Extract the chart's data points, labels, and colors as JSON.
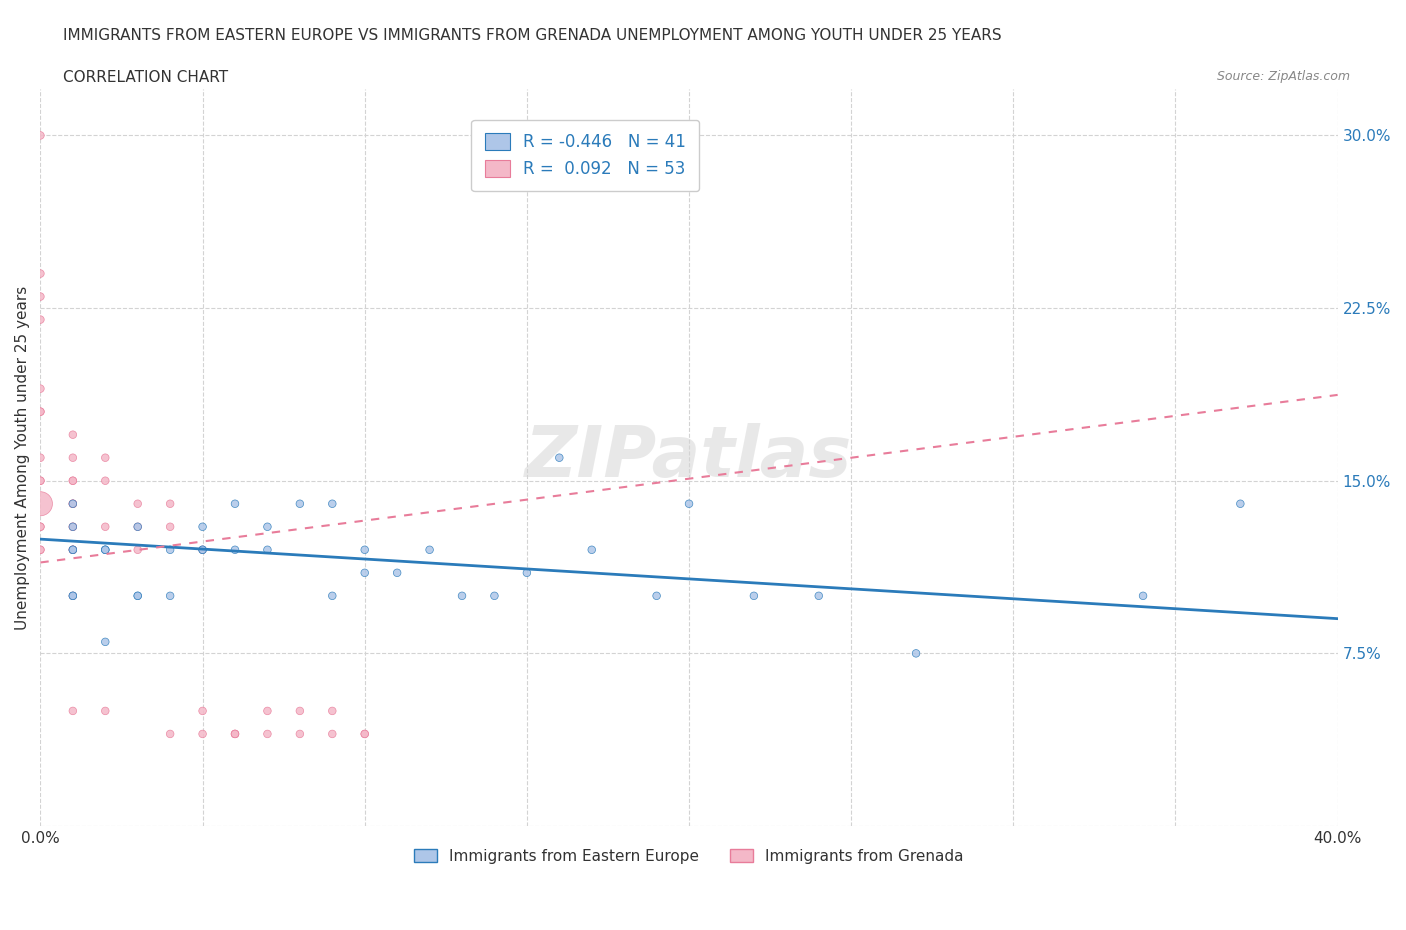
{
  "title_line1": "IMMIGRANTS FROM EASTERN EUROPE VS IMMIGRANTS FROM GRENADA UNEMPLOYMENT AMONG YOUTH UNDER 25 YEARS",
  "title_line2": "CORRELATION CHART",
  "source": "Source: ZipAtlas.com",
  "xlabel": "",
  "ylabel": "Unemployment Among Youth under 25 years",
  "xmin": 0.0,
  "xmax": 0.4,
  "ymin": 0.0,
  "ymax": 0.32,
  "xticks": [
    0.0,
    0.05,
    0.1,
    0.15,
    0.2,
    0.25,
    0.3,
    0.35,
    0.4
  ],
  "yticks": [
    0.0,
    0.075,
    0.15,
    0.225,
    0.3
  ],
  "ytick_labels": [
    "",
    "7.5%",
    "15.0%",
    "22.5%",
    "30.0%"
  ],
  "xtick_labels": [
    "0.0%",
    "",
    "",
    "",
    "",
    "",
    "",
    "",
    "40.0%"
  ],
  "legend_r1": "R = -0.446   N = 41",
  "legend_r2": "R =  0.092   N = 53",
  "color_eastern": "#aec6e8",
  "color_grenada": "#f4b8c8",
  "line_color_eastern": "#2b7bba",
  "line_color_grenada": "#e87c9a",
  "watermark": "ZIPatlas",
  "eastern_R": -0.446,
  "eastern_N": 41,
  "grenada_R": 0.092,
  "grenada_N": 53,
  "eastern_x": [
    0.01,
    0.01,
    0.01,
    0.01,
    0.01,
    0.01,
    0.02,
    0.02,
    0.02,
    0.02,
    0.03,
    0.03,
    0.03,
    0.04,
    0.04,
    0.05,
    0.05,
    0.05,
    0.06,
    0.06,
    0.07,
    0.07,
    0.08,
    0.09,
    0.09,
    0.1,
    0.1,
    0.11,
    0.12,
    0.13,
    0.14,
    0.15,
    0.16,
    0.17,
    0.19,
    0.2,
    0.22,
    0.24,
    0.27,
    0.34,
    0.37
  ],
  "eastern_y": [
    0.12,
    0.1,
    0.1,
    0.12,
    0.13,
    0.14,
    0.12,
    0.12,
    0.12,
    0.08,
    0.1,
    0.1,
    0.13,
    0.12,
    0.1,
    0.12,
    0.12,
    0.13,
    0.14,
    0.12,
    0.13,
    0.12,
    0.14,
    0.14,
    0.1,
    0.12,
    0.11,
    0.11,
    0.12,
    0.1,
    0.1,
    0.11,
    0.16,
    0.12,
    0.1,
    0.14,
    0.1,
    0.1,
    0.075,
    0.1,
    0.14
  ],
  "grenada_x": [
    0.0,
    0.0,
    0.0,
    0.0,
    0.0,
    0.0,
    0.0,
    0.0,
    0.0,
    0.0,
    0.0,
    0.0,
    0.0,
    0.0,
    0.0,
    0.01,
    0.01,
    0.01,
    0.01,
    0.01,
    0.01,
    0.01,
    0.01,
    0.01,
    0.01,
    0.01,
    0.01,
    0.01,
    0.01,
    0.02,
    0.02,
    0.02,
    0.02,
    0.03,
    0.03,
    0.03,
    0.04,
    0.04,
    0.04,
    0.05,
    0.05,
    0.05,
    0.06,
    0.06,
    0.06,
    0.07,
    0.07,
    0.08,
    0.08,
    0.09,
    0.09,
    0.1,
    0.1
  ],
  "grenada_y": [
    0.3,
    0.24,
    0.23,
    0.22,
    0.19,
    0.18,
    0.18,
    0.16,
    0.15,
    0.15,
    0.14,
    0.13,
    0.13,
    0.12,
    0.12,
    0.17,
    0.16,
    0.15,
    0.15,
    0.14,
    0.14,
    0.14,
    0.13,
    0.13,
    0.12,
    0.12,
    0.12,
    0.1,
    0.05,
    0.16,
    0.15,
    0.13,
    0.05,
    0.14,
    0.13,
    0.12,
    0.14,
    0.13,
    0.04,
    0.12,
    0.05,
    0.04,
    0.04,
    0.04,
    0.04,
    0.05,
    0.04,
    0.05,
    0.04,
    0.05,
    0.04,
    0.04,
    0.04
  ],
  "eastern_sizes": [
    30,
    30,
    30,
    30,
    30,
    30,
    30,
    30,
    30,
    30,
    30,
    30,
    30,
    30,
    30,
    30,
    30,
    30,
    30,
    30,
    30,
    30,
    30,
    30,
    30,
    30,
    30,
    30,
    30,
    30,
    30,
    30,
    30,
    30,
    30,
    30,
    30,
    30,
    30,
    30,
    30
  ],
  "grenada_sizes": [
    30,
    30,
    30,
    30,
    30,
    30,
    30,
    30,
    30,
    30,
    300,
    30,
    30,
    30,
    30,
    30,
    30,
    30,
    30,
    30,
    30,
    30,
    30,
    30,
    30,
    30,
    30,
    30,
    30,
    30,
    30,
    30,
    30,
    30,
    30,
    30,
    30,
    30,
    30,
    30,
    30,
    30,
    30,
    30,
    30,
    30,
    30,
    30,
    30,
    30,
    30,
    30,
    30
  ]
}
